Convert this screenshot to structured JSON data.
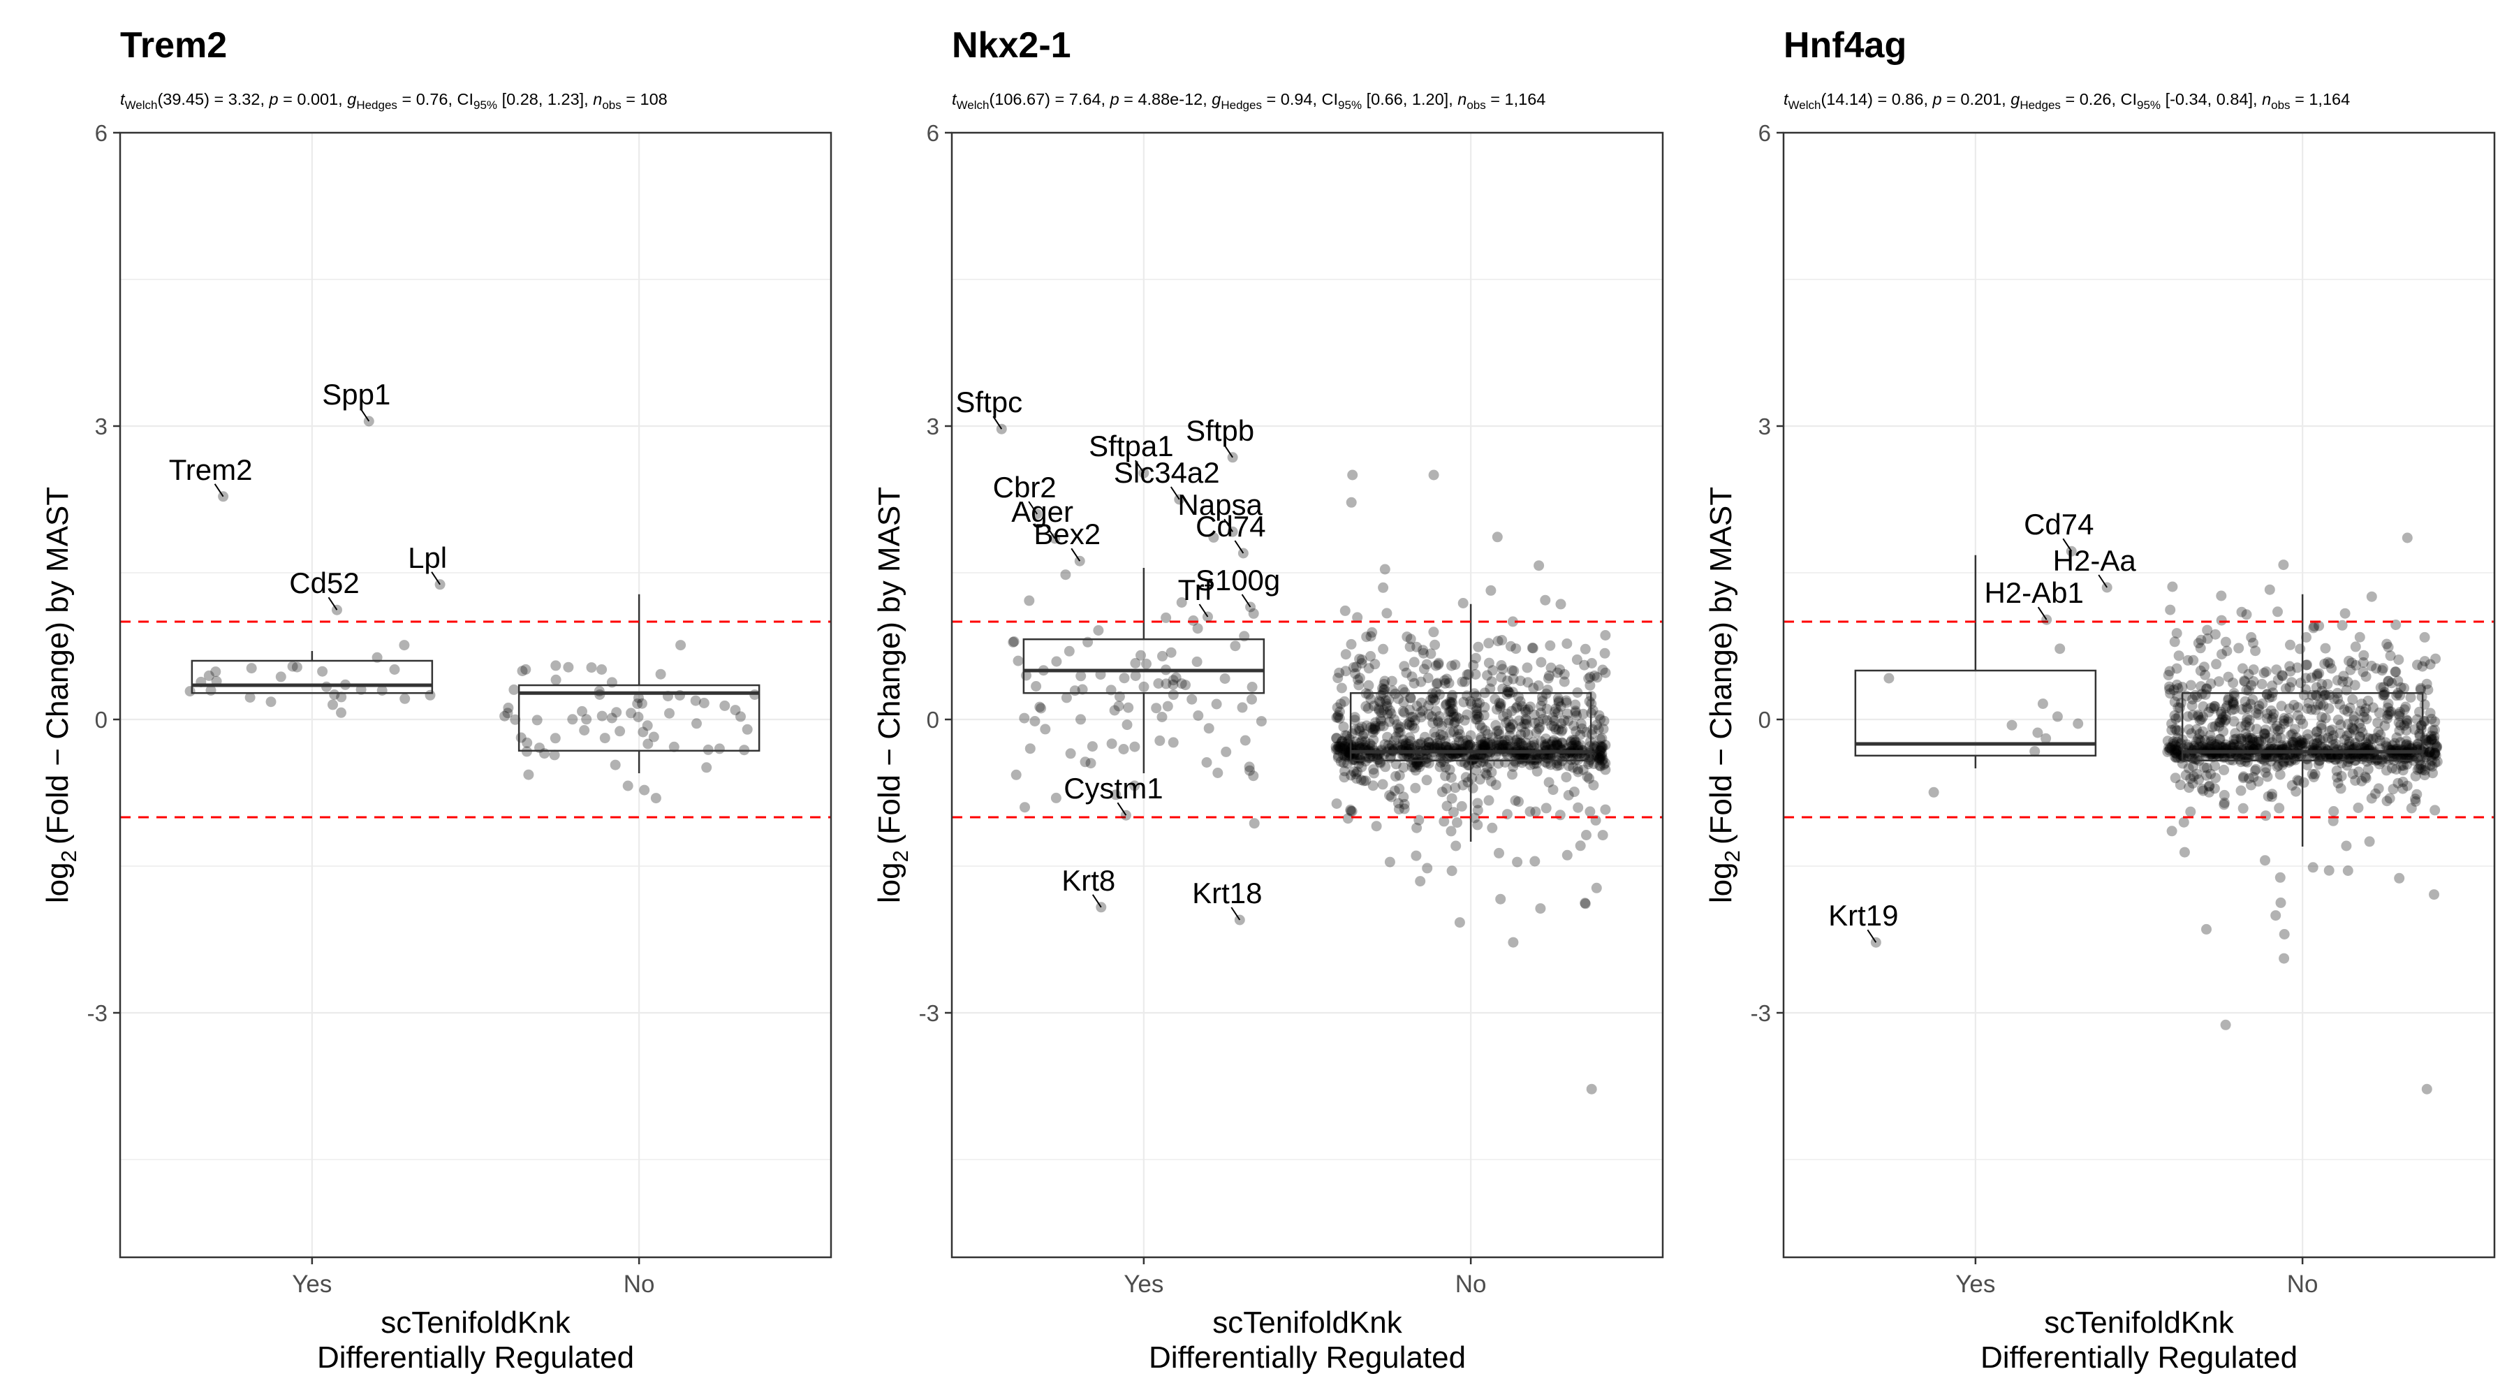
{
  "figure": {
    "background": "#ffffff",
    "point_color": "#000000",
    "threshold_color": "#ff0000",
    "gridline_color": "#ebebeb"
  },
  "chart_data": [
    {
      "type": "box",
      "title": "Trem2",
      "subtitle": {
        "text": "t_Welch(39.45) = 3.32, p = 0.001, g_Hedges = 0.76, CI_95% [0.28, 1.23], n_obs = 108",
        "parts": [
          {
            "t": "t",
            "i": true
          },
          {
            "t": "Welch",
            "sub": true
          },
          {
            "t": "(39.45) = 3.32, "
          },
          {
            "t": "p",
            "i": true
          },
          {
            "t": " = 0.001, "
          },
          {
            "t": "g",
            "i": true,
            "hat": true
          },
          {
            "t": "Hedges",
            "sub": true
          },
          {
            "t": " = 0.76, CI"
          },
          {
            "t": "95%",
            "sub": true
          },
          {
            "t": " [0.28, 1.23], "
          },
          {
            "t": "n",
            "i": true
          },
          {
            "t": "obs",
            "sub": true
          },
          {
            "t": " = 108"
          }
        ]
      },
      "xlabel": [
        "scTenifoldKnk",
        "Differentially Regulated"
      ],
      "ylabel": {
        "pre": "log",
        "sub": "2",
        "post": "(Fold − Change) by MAST"
      },
      "categories": [
        "Yes",
        "No"
      ],
      "yticks": [
        -3,
        0,
        3,
        6
      ],
      "ytick_labels": [
        "-3",
        "0",
        "3",
        "6"
      ],
      "ylim": [
        -5.5,
        6
      ],
      "threshold_lines": [
        1,
        -1
      ],
      "boxes": [
        {
          "category": "Yes",
          "q1": 0.27,
          "median": 0.35,
          "q3": 0.6,
          "whisker_low": 0.27,
          "whisker_high": 0.7
        },
        {
          "category": "No",
          "q1": -0.32,
          "median": 0.27,
          "q3": 0.35,
          "whisker_low": -0.55,
          "whisker_high": 1.28
        }
      ],
      "points": [
        {
          "category": "Yes",
          "n": 26,
          "center": 0.4,
          "spread": 0.15,
          "seed": 11
        },
        {
          "category": "No",
          "n": 64,
          "center": 0.0,
          "spread": 0.33,
          "seed": 12
        }
      ],
      "labeled_points": [
        {
          "label": "Spp1",
          "category": "Yes",
          "x_offset": 0.16,
          "y": 3.05
        },
        {
          "label": "Trem2",
          "category": "Yes",
          "x_offset": -0.25,
          "y": 2.28
        },
        {
          "label": "Lpl",
          "category": "Yes",
          "x_offset": 0.36,
          "y": 1.38
        },
        {
          "label": "Cd52",
          "category": "Yes",
          "x_offset": 0.07,
          "y": 1.12
        }
      ]
    },
    {
      "type": "box",
      "title": "Nkx2-1",
      "subtitle": {
        "text": "t_Welch(106.67) = 7.64, p = 4.88e-12, g_Hedges = 0.94, CI_95% [0.66, 1.20], n_obs = 1,164",
        "parts": [
          {
            "t": "t",
            "i": true
          },
          {
            "t": "Welch",
            "sub": true
          },
          {
            "t": "(106.67) = 7.64, "
          },
          {
            "t": "p",
            "i": true
          },
          {
            "t": " = 4.88e-12, "
          },
          {
            "t": "g",
            "i": true,
            "hat": true
          },
          {
            "t": "Hedges",
            "sub": true
          },
          {
            "t": " = 0.94, CI"
          },
          {
            "t": "95%",
            "sub": true
          },
          {
            "t": " [0.66, 1.20], "
          },
          {
            "t": "n",
            "i": true
          },
          {
            "t": "obs",
            "sub": true
          },
          {
            "t": " = 1,164"
          }
        ]
      },
      "xlabel": [
        "scTenifoldKnk",
        "Differentially Regulated"
      ],
      "ylabel": {
        "pre": "log",
        "sub": "2",
        "post": "(Fold − Change) by MAST"
      },
      "categories": [
        "Yes",
        "No"
      ],
      "yticks": [
        -3,
        0,
        3,
        6
      ],
      "ytick_labels": [
        "-3",
        "0",
        "3",
        "6"
      ],
      "ylim": [
        -5.5,
        6
      ],
      "threshold_lines": [
        1,
        -1
      ],
      "boxes": [
        {
          "category": "Yes",
          "q1": 0.27,
          "median": 0.5,
          "q3": 0.82,
          "whisker_low": -0.55,
          "whisker_high": 1.55
        },
        {
          "category": "No",
          "q1": -0.42,
          "median": -0.33,
          "q3": 0.27,
          "whisker_low": -1.25,
          "whisker_high": 1.18
        }
      ],
      "points": [
        {
          "category": "Yes",
          "n": 90,
          "center": 0.3,
          "spread": 0.6,
          "seed": 21
        },
        {
          "category": "No",
          "n": 1000,
          "center": -0.08,
          "spread": 0.42,
          "seed": 22
        }
      ],
      "labeled_points": [
        {
          "label": "Sftpc",
          "category": "Yes",
          "x_offset": -0.4,
          "y": 2.97
        },
        {
          "label": "Sftpb",
          "category": "Yes",
          "x_offset": 0.25,
          "y": 2.68
        },
        {
          "label": "Sftpa1",
          "category": "Yes",
          "x_offset": 0.0,
          "y": 2.52
        },
        {
          "label": "Cbr2",
          "category": "Yes",
          "x_offset": -0.3,
          "y": 2.1
        },
        {
          "label": "Slc34a2",
          "category": "Yes",
          "x_offset": 0.1,
          "y": 2.25
        },
        {
          "label": "Ager",
          "category": "Yes",
          "x_offset": -0.25,
          "y": 1.85
        },
        {
          "label": "Napsa",
          "category": "Yes",
          "x_offset": 0.25,
          "y": 1.92
        },
        {
          "label": "Cd74",
          "category": "Yes",
          "x_offset": 0.28,
          "y": 1.7
        },
        {
          "label": "Bex2",
          "category": "Yes",
          "x_offset": -0.18,
          "y": 1.62
        },
        {
          "label": "S100g",
          "category": "Yes",
          "x_offset": 0.3,
          "y": 1.15
        },
        {
          "label": "Trf",
          "category": "Yes",
          "x_offset": 0.18,
          "y": 1.05
        },
        {
          "label": "Cystm1",
          "category": "Yes",
          "x_offset": -0.05,
          "y": -0.98
        },
        {
          "label": "Krt8",
          "category": "Yes",
          "x_offset": -0.12,
          "y": -1.92
        },
        {
          "label": "Krt18",
          "category": "Yes",
          "x_offset": 0.27,
          "y": -2.05
        },
        {
          "label": "",
          "category": "No",
          "x_offset": 0.34,
          "y": -3.78
        }
      ]
    },
    {
      "type": "box",
      "title": "Hnf4ag",
      "subtitle": {
        "text": "t_Welch(14.14) = 0.86, p = 0.201, g_Hedges = 0.26, CI_95% [-0.34, 0.84], n_obs = 1,164",
        "parts": [
          {
            "t": "t",
            "i": true
          },
          {
            "t": "Welch",
            "sub": true
          },
          {
            "t": "(14.14) = 0.86, "
          },
          {
            "t": "p",
            "i": true
          },
          {
            "t": " = 0.201, "
          },
          {
            "t": "g",
            "i": true,
            "hat": true
          },
          {
            "t": "Hedges",
            "sub": true
          },
          {
            "t": " = 0.26, CI"
          },
          {
            "t": "95%",
            "sub": true
          },
          {
            "t": " [-0.34, 0.84], "
          },
          {
            "t": "n",
            "i": true
          },
          {
            "t": "obs",
            "sub": true
          },
          {
            "t": " = 1,164"
          }
        ]
      },
      "xlabel": [
        "scTenifoldKnk",
        "Differentially Regulated"
      ],
      "ylabel": {
        "pre": "log",
        "sub": "2",
        "post": "(Fold − Change) by MAST"
      },
      "categories": [
        "Yes",
        "No"
      ],
      "yticks": [
        -3,
        0,
        3,
        6
      ],
      "ytick_labels": [
        "-3",
        "0",
        "3",
        "6"
      ],
      "ylim": [
        -5.5,
        6
      ],
      "threshold_lines": [
        1,
        -1
      ],
      "boxes": [
        {
          "category": "Yes",
          "q1": -0.37,
          "median": -0.25,
          "q3": 0.5,
          "whisker_low": -0.5,
          "whisker_high": 1.68
        },
        {
          "category": "No",
          "q1": -0.42,
          "median": -0.33,
          "q3": 0.27,
          "whisker_low": -1.3,
          "whisker_high": 1.28
        }
      ],
      "points": [
        {
          "category": "Yes",
          "n": 10,
          "center": 0.0,
          "spread": 0.35,
          "seed": 31
        },
        {
          "category": "No",
          "n": 1000,
          "center": -0.08,
          "spread": 0.42,
          "seed": 32
        }
      ],
      "labeled_points": [
        {
          "label": "Cd74",
          "category": "Yes",
          "x_offset": 0.27,
          "y": 1.72
        },
        {
          "label": "H2-Aa",
          "category": "Yes",
          "x_offset": 0.37,
          "y": 1.35
        },
        {
          "label": "H2-Ab1",
          "category": "Yes",
          "x_offset": 0.2,
          "y": 1.02
        },
        {
          "label": "Krt19",
          "category": "Yes",
          "x_offset": -0.28,
          "y": -2.28
        },
        {
          "label": "",
          "category": "No",
          "x_offset": 0.35,
          "y": -3.78
        }
      ]
    }
  ]
}
